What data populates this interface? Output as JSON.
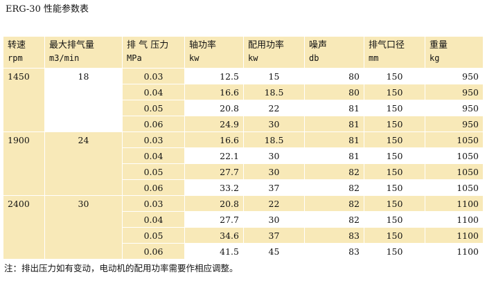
{
  "title": "ERG-30 性能参数表",
  "headers": [
    {
      "label": "转速",
      "unit": "rpm"
    },
    {
      "label": "最大排气量",
      "unit": "m3/min"
    },
    {
      "label": "排 气 压力",
      "unit": "MPa"
    },
    {
      "label": "轴功率",
      "unit": "kw"
    },
    {
      "label": "配用功率",
      "unit": "kw"
    },
    {
      "label": "噪声",
      "unit": "db"
    },
    {
      "label": "排气口径",
      "unit": "mm"
    },
    {
      "label": "重量",
      "unit": "kg"
    }
  ],
  "groups": [
    {
      "speed": "1450",
      "max_flow": "18",
      "rows": [
        {
          "pressure": "0.03",
          "shaft_power": "12.5",
          "rated_power": "15",
          "noise": "80",
          "port": "150",
          "weight": "950"
        },
        {
          "pressure": "0.04",
          "shaft_power": "16.6",
          "rated_power": "18.5",
          "noise": "80",
          "port": "150",
          "weight": "950"
        },
        {
          "pressure": "0.05",
          "shaft_power": "20.8",
          "rated_power": "22",
          "noise": "81",
          "port": "150",
          "weight": "950"
        },
        {
          "pressure": "0.06",
          "shaft_power": "24.9",
          "rated_power": "30",
          "noise": "81",
          "port": "150",
          "weight": "950"
        }
      ]
    },
    {
      "speed": "1900",
      "max_flow": "24",
      "rows": [
        {
          "pressure": "0.03",
          "shaft_power": "16.6",
          "rated_power": "18.5",
          "noise": "81",
          "port": "150",
          "weight": "1050"
        },
        {
          "pressure": "0.04",
          "shaft_power": "22.1",
          "rated_power": "30",
          "noise": "81",
          "port": "150",
          "weight": "1050"
        },
        {
          "pressure": "0.05",
          "shaft_power": "27.7",
          "rated_power": "30",
          "noise": "82",
          "port": "150",
          "weight": "1050"
        },
        {
          "pressure": "0.06",
          "shaft_power": "33.2",
          "rated_power": "37",
          "noise": "82",
          "port": "150",
          "weight": "1050"
        }
      ]
    },
    {
      "speed": "2400",
      "max_flow": "30",
      "rows": [
        {
          "pressure": "0.03",
          "shaft_power": "20.8",
          "rated_power": "22",
          "noise": "82",
          "port": "150",
          "weight": "1100"
        },
        {
          "pressure": "0.04",
          "shaft_power": "27.7",
          "rated_power": "30",
          "noise": "82",
          "port": "150",
          "weight": "1100"
        },
        {
          "pressure": "0.05",
          "shaft_power": "34.6",
          "rated_power": "37",
          "noise": "83",
          "port": "150",
          "weight": "1100"
        },
        {
          "pressure": "0.06",
          "shaft_power": "41.5",
          "rated_power": "45",
          "noise": "83",
          "port": "150",
          "weight": "1100"
        }
      ]
    }
  ],
  "note": "注：排出压力如有变动，电动机的配用功率需要作相应调整。"
}
